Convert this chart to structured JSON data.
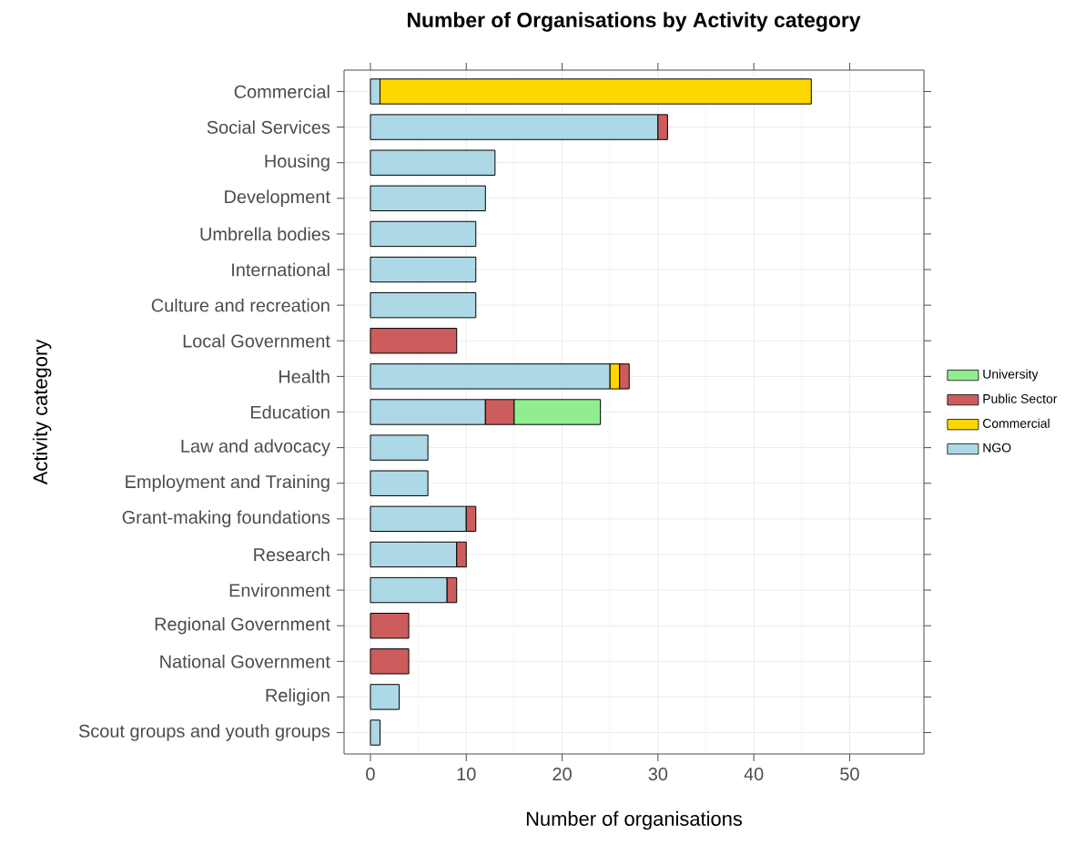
{
  "chart_data": {
    "type": "bar",
    "orientation": "horizontal",
    "stacked": true,
    "title": "Number of Organisations by Activity category",
    "xlabel": "Number of organisations",
    "ylabel": "Activity category",
    "categories": [
      "Commercial",
      "Social Services",
      "Housing",
      "Development",
      "Umbrella bodies",
      "International",
      "Culture and recreation",
      "Local Government",
      "Health",
      "Education",
      "Law and advocacy",
      "Employment and Training",
      "Grant-making foundations",
      "Research",
      "Environment",
      "Regional Government",
      "National Government",
      "Religion",
      "Scout groups and youth groups"
    ],
    "series": [
      {
        "name": "NGO",
        "color": "#add8e6",
        "values": [
          1,
          30,
          13,
          12,
          11,
          11,
          11,
          null,
          25,
          12,
          6,
          6,
          10,
          9,
          8,
          null,
          null,
          3,
          1
        ]
      },
      {
        "name": "Commercial",
        "color": "#ffd700",
        "values": [
          45,
          null,
          null,
          null,
          null,
          null,
          null,
          null,
          1,
          null,
          null,
          null,
          null,
          null,
          null,
          null,
          null,
          null,
          null
        ]
      },
      {
        "name": "Public Sector",
        "color": "#cd5c5c",
        "values": [
          null,
          1,
          null,
          null,
          null,
          null,
          null,
          9,
          1,
          3,
          null,
          null,
          1,
          1,
          1,
          4,
          4,
          null,
          null
        ]
      },
      {
        "name": "University",
        "color": "#90ee90",
        "values": [
          null,
          null,
          null,
          null,
          null,
          null,
          null,
          null,
          null,
          9,
          null,
          null,
          null,
          null,
          null,
          null,
          null,
          null,
          null
        ]
      }
    ],
    "xlim": [
      -2.75,
      57.75
    ],
    "xticks": [
      0,
      10,
      20,
      30,
      40,
      50
    ],
    "grid": true,
    "legend": "right"
  }
}
